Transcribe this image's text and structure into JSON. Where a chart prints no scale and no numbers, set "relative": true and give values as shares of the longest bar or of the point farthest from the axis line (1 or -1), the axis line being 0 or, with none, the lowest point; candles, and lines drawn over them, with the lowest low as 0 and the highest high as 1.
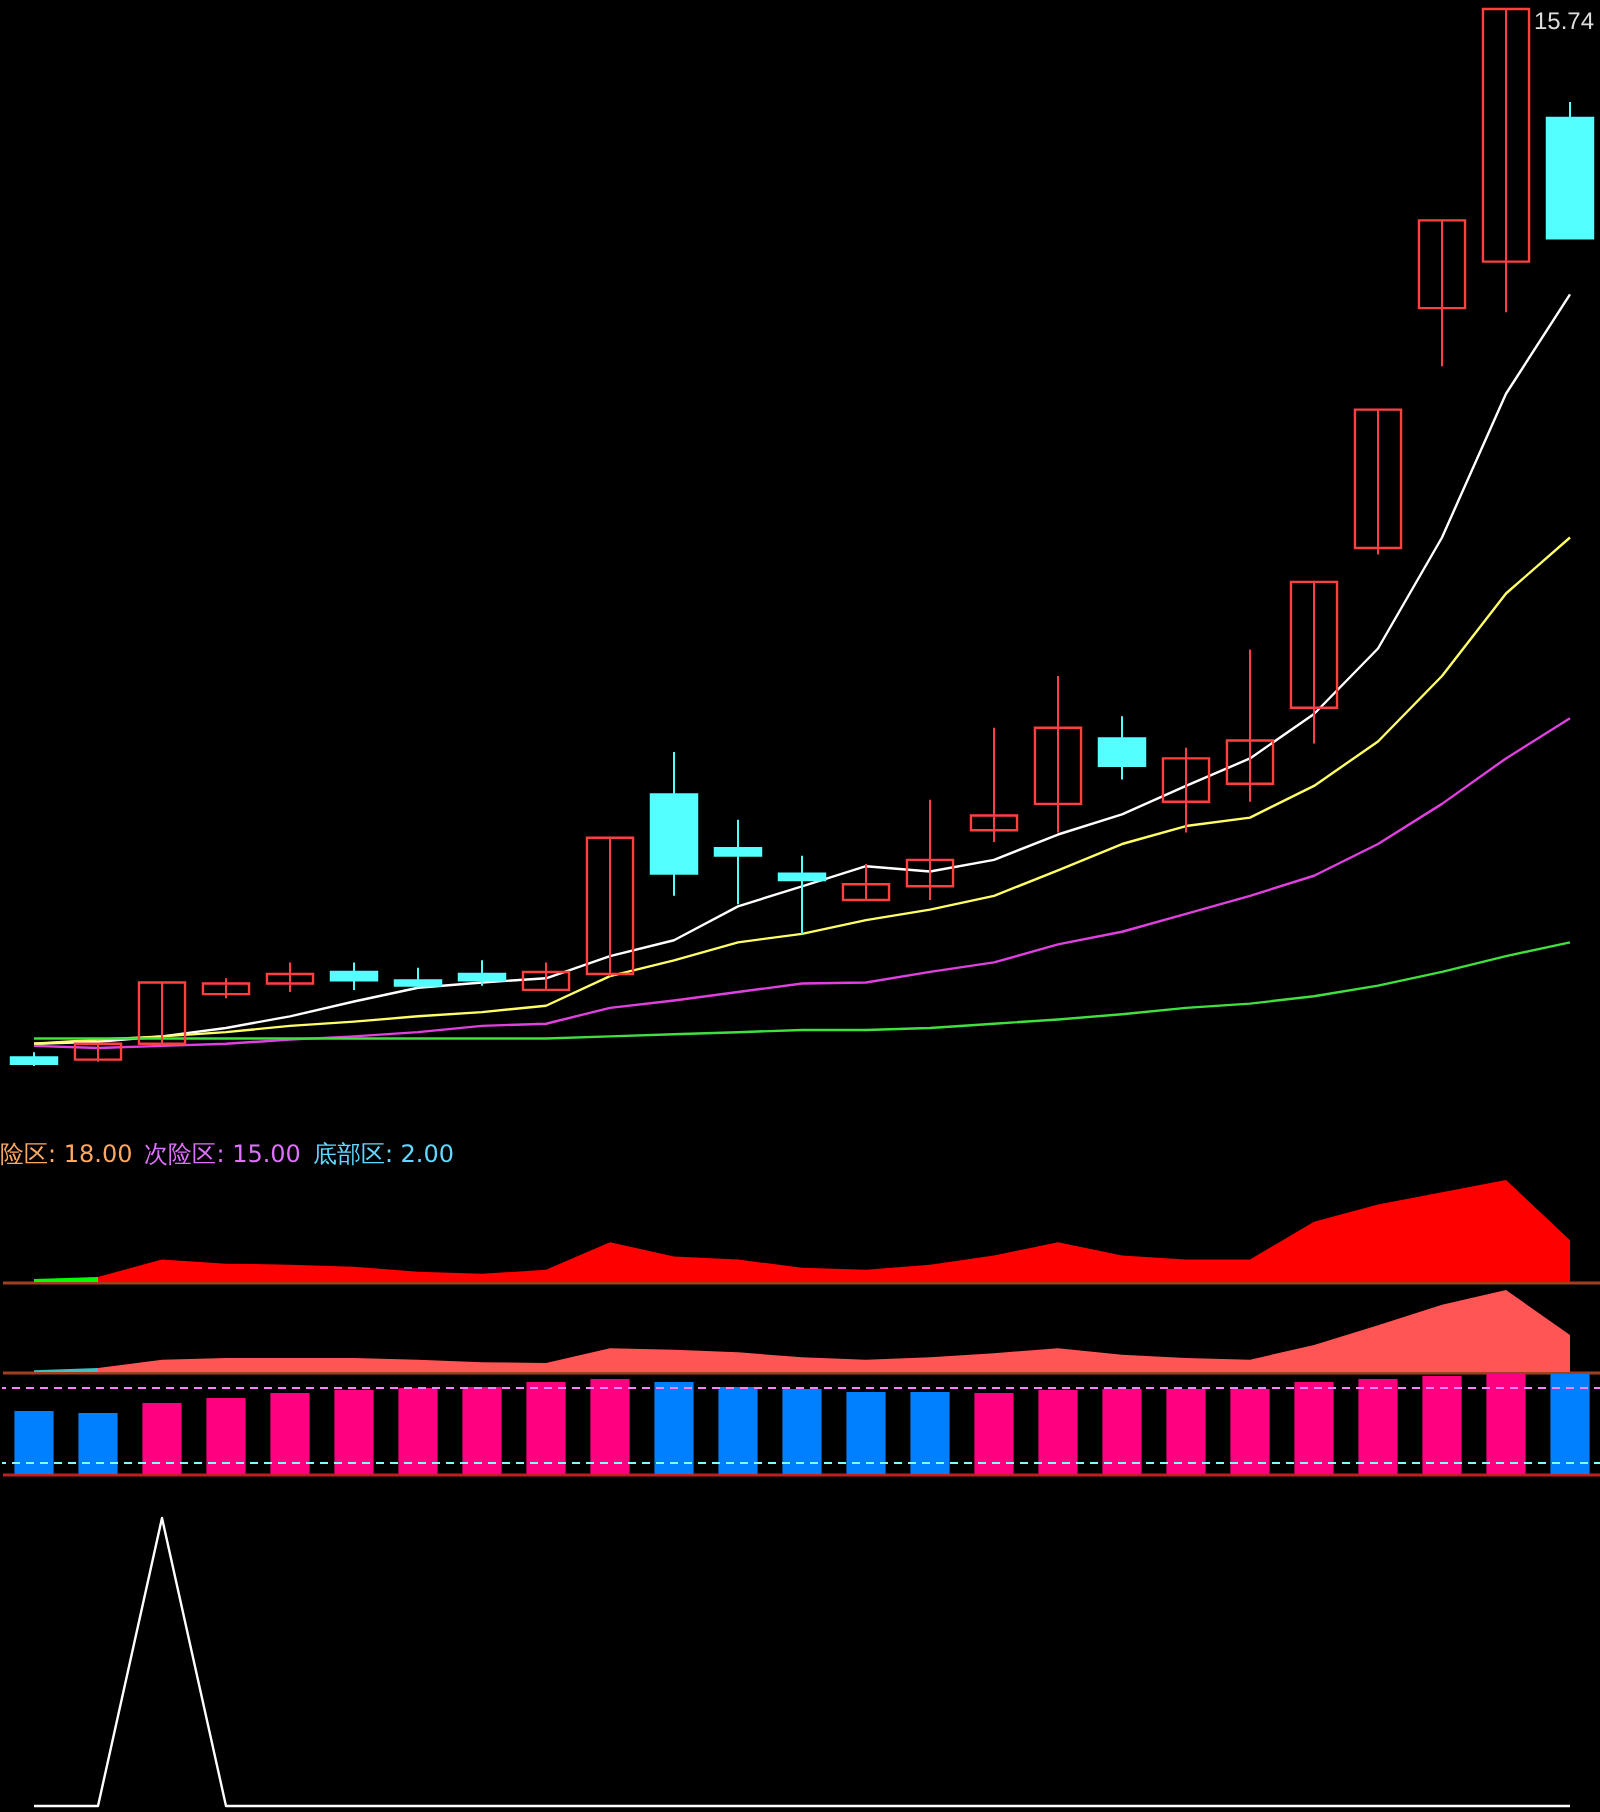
{
  "chart_data": [
    {
      "type": "candlestick",
      "relative": true,
      "categories": [
        null,
        null,
        null,
        null,
        null,
        null,
        null,
        null,
        null,
        null,
        null,
        null,
        null,
        null,
        null,
        null,
        null,
        null,
        null,
        null,
        null,
        null,
        null,
        null,
        null
      ],
      "ohlc": [
        [
          0.008,
          0.013,
          0,
          0.002
        ],
        [
          0.006,
          0.021,
          0.004,
          0.021
        ],
        [
          0.021,
          0.079,
          0.019,
          0.079
        ],
        [
          0.068,
          0.083,
          0.064,
          0.078
        ],
        [
          0.078,
          0.098,
          0.07,
          0.087
        ],
        [
          0.089,
          0.098,
          0.072,
          0.081
        ],
        [
          0.081,
          0.093,
          0.074,
          0.076
        ],
        [
          0.087,
          0.1,
          0.076,
          0.081
        ],
        [
          0.072,
          0.098,
          0.072,
          0.089
        ],
        [
          0.087,
          0.216,
          0.085,
          0.216
        ],
        [
          0.257,
          0.297,
          0.161,
          0.182
        ],
        [
          0.206,
          0.233,
          0.153,
          0.199
        ],
        [
          0.182,
          0.199,
          0.125,
          0.176
        ],
        [
          0.157,
          0.191,
          0.157,
          0.172
        ],
        [
          0.17,
          0.252,
          0.157,
          0.195
        ],
        [
          0.223,
          0.32,
          0.212,
          0.237
        ],
        [
          0.248,
          0.369,
          0.221,
          0.32
        ],
        [
          0.31,
          0.331,
          0.271,
          0.284
        ],
        [
          0.25,
          0.301,
          0.221,
          0.291
        ],
        [
          0.267,
          0.394,
          0.25,
          0.308
        ],
        [
          0.339,
          0.458,
          0.305,
          0.458
        ],
        [
          0.49,
          0.621,
          0.484,
          0.621
        ],
        [
          0.717,
          0.8,
          0.662,
          0.8
        ],
        [
          0.761,
          1,
          0.713,
          1
        ],
        [
          0.897,
          0.912,
          0.783,
          0.783
        ]
      ],
      "series": [
        {
          "type": "line",
          "color": "#ffffff",
          "values": [
            0.021,
            0.023,
            0.028,
            0.036,
            0.047,
            0.061,
            0.074,
            0.079,
            0.083,
            0.104,
            0.119,
            0.151,
            0.17,
            0.189,
            0.184,
            0.195,
            0.219,
            0.238,
            0.265,
            0.291,
            0.333,
            0.395,
            0.5,
            0.636,
            0.73
          ]
        },
        {
          "type": "line",
          "color": "#ffff66",
          "values": [
            0.021,
            0.025,
            0.028,
            0.032,
            0.038,
            0.042,
            0.047,
            0.051,
            0.057,
            0.085,
            0.1,
            0.117,
            0.125,
            0.138,
            0.148,
            0.161,
            0.185,
            0.21,
            0.227,
            0.235,
            0.265,
            0.307,
            0.369,
            0.447,
            0.5
          ]
        },
        {
          "type": "line",
          "color": "#e040e0",
          "values": [
            0.019,
            0.017,
            0.019,
            0.021,
            0.025,
            0.028,
            0.032,
            0.038,
            0.04,
            0.055,
            0.062,
            0.07,
            0.078,
            0.079,
            0.089,
            0.098,
            0.115,
            0.127,
            0.144,
            0.161,
            0.18,
            0.21,
            0.248,
            0.291,
            0.329
          ]
        },
        {
          "type": "line",
          "color": "#40e040",
          "values": [
            0.026,
            0.026,
            0.026,
            0.026,
            0.026,
            0.026,
            0.026,
            0.026,
            0.026,
            0.028,
            0.03,
            0.032,
            0.034,
            0.034,
            0.036,
            0.04,
            0.044,
            0.049,
            0.055,
            0.059,
            0.066,
            0.076,
            0.089,
            0.104,
            0.117
          ]
        }
      ],
      "annotations": [
        "15.74"
      ]
    },
    {
      "type": "area",
      "relative": true,
      "categories": [
        null,
        null,
        null,
        null,
        null,
        null,
        null,
        null,
        null,
        null,
        null,
        null,
        null,
        null,
        null,
        null,
        null,
        null,
        null,
        null,
        null,
        null,
        null,
        null,
        null
      ],
      "series": [
        {
          "color": "#00ff00",
          "values": [
            0.03,
            0.05,
            null,
            null,
            null,
            null,
            null,
            null,
            null,
            null,
            null,
            null,
            null,
            null,
            null,
            null,
            null,
            null,
            null,
            null,
            null,
            null,
            null,
            null,
            null
          ]
        },
        {
          "color": "#ff0000",
          "values": [
            null,
            0.05,
            0.22,
            0.18,
            0.17,
            0.15,
            0.1,
            0.08,
            0.12,
            0.39,
            0.25,
            0.22,
            0.14,
            0.12,
            0.17,
            0.26,
            0.39,
            0.26,
            0.22,
            0.22,
            0.59,
            0.76,
            0.88,
            1,
            0.41
          ]
        }
      ],
      "annotations": [
        "险区: 18.00",
        "次险区: 15.00",
        "底部区: 2.00"
      ]
    },
    {
      "type": "area",
      "relative": true,
      "categories": [
        null,
        null,
        null,
        null,
        null,
        null,
        null,
        null,
        null,
        null,
        null,
        null,
        null,
        null,
        null,
        null,
        null,
        null,
        null,
        null,
        null,
        null,
        null,
        null,
        null
      ],
      "series": [
        {
          "color": "#40c0c0",
          "values": [
            0.02,
            0.05,
            null,
            null,
            null,
            null,
            null,
            null,
            null,
            null,
            null,
            null,
            null,
            null,
            null,
            null,
            null,
            null,
            null,
            null,
            null,
            null,
            null,
            null,
            null
          ]
        },
        {
          "color": "#ff5555",
          "values": [
            null,
            0.05,
            0.15,
            0.17,
            0.17,
            0.17,
            0.15,
            0.12,
            0.11,
            0.29,
            0.27,
            0.24,
            0.18,
            0.15,
            0.18,
            0.23,
            0.29,
            0.21,
            0.17,
            0.15,
            0.33,
            0.57,
            0.82,
            1,
            0.45
          ]
        }
      ]
    },
    {
      "type": "bar",
      "relative": true,
      "categories": [
        null,
        null,
        null,
        null,
        null,
        null,
        null,
        null,
        null,
        null,
        null,
        null,
        null,
        null,
        null,
        null,
        null,
        null,
        null,
        null,
        null,
        null,
        null,
        null,
        null
      ],
      "values": [
        0.63,
        0.61,
        0.71,
        0.76,
        0.81,
        0.84,
        0.86,
        0.87,
        0.92,
        0.95,
        0.92,
        0.87,
        0.85,
        0.82,
        0.82,
        0.81,
        0.84,
        0.85,
        0.85,
        0.85,
        0.92,
        0.95,
        0.98,
        1,
        1
      ],
      "colors": [
        "#0080ff",
        "#0080ff",
        "#ff0080",
        "#ff0080",
        "#ff0080",
        "#ff0080",
        "#ff0080",
        "#ff0080",
        "#ff0080",
        "#ff0080",
        "#0080ff",
        "#0080ff",
        "#0080ff",
        "#0080ff",
        "#0080ff",
        "#ff0080",
        "#ff0080",
        "#ff0080",
        "#ff0080",
        "#ff0080",
        "#ff0080",
        "#ff0080",
        "#ff0080",
        "#ff0080",
        "#0080ff"
      ],
      "ref_lines": [
        {
          "axis": "y",
          "value": 0.86,
          "color": "#ff80ff",
          "line_style": "dashed"
        },
        {
          "axis": "y",
          "value": 0.11,
          "color": "#80ffff",
          "line_style": "dashed"
        }
      ]
    },
    {
      "type": "line",
      "relative": true,
      "categories": [
        null,
        null,
        null,
        null,
        null,
        null,
        null,
        null,
        null,
        null,
        null,
        null,
        null,
        null,
        null,
        null,
        null,
        null,
        null,
        null,
        null,
        null,
        null,
        null,
        null
      ],
      "series": [
        {
          "color": "#ffffff",
          "values": [
            0,
            0,
            1,
            0,
            0,
            0,
            0,
            0,
            0,
            0,
            0,
            0,
            0,
            0,
            0,
            0,
            0,
            0,
            0,
            0,
            0,
            0,
            0,
            0,
            0
          ]
        }
      ]
    }
  ]
}
